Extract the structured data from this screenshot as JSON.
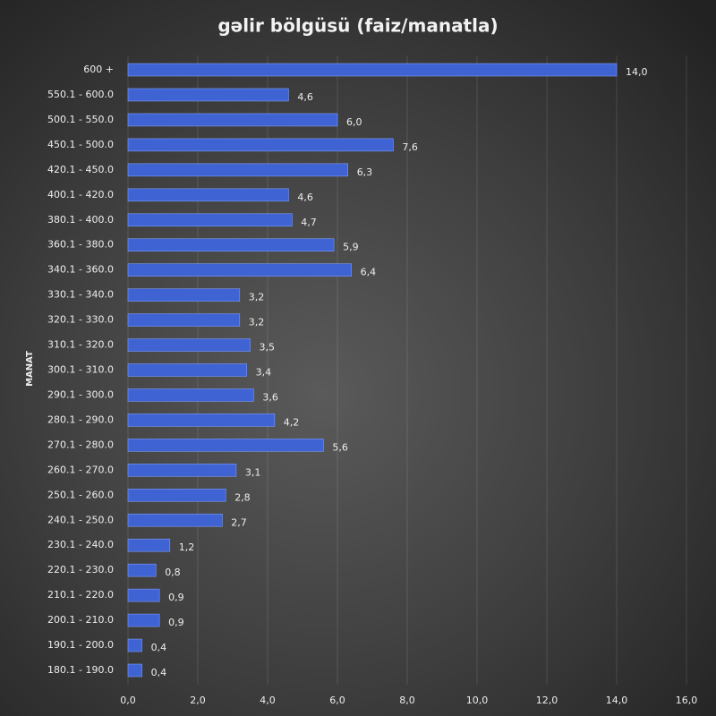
{
  "chart_data": {
    "type": "bar",
    "orientation": "horizontal",
    "title": "gəlir bölgüsü (faiz/manatla)",
    "y_axis_label": "MANAT",
    "categories": [
      "600 +",
      "550.1 - 600.0",
      "500.1 - 550.0",
      "450.1 - 500.0",
      "420.1 - 450.0",
      "400.1 - 420.0",
      "380.1 - 400.0",
      "360.1 - 380.0",
      "340.1 - 360.0",
      "330.1 - 340.0",
      "320.1 - 330.0",
      "310.1 - 320.0",
      "300.1 - 310.0",
      "290.1 - 300.0",
      "280.1 - 290.0",
      "270.1 - 280.0",
      "260.1 - 270.0",
      "250.1 - 260.0",
      "240.1 - 250.0",
      "230.1 - 240.0",
      "220.1 - 230.0",
      "210.1 - 220.0",
      "200.1 - 210.0",
      "190.1 - 200.0",
      "180.1 - 190.0"
    ],
    "values": [
      14.0,
      4.6,
      6.0,
      7.6,
      6.3,
      4.6,
      4.7,
      5.9,
      6.4,
      3.2,
      3.2,
      3.5,
      3.4,
      3.6,
      4.2,
      5.6,
      3.1,
      2.8,
      2.7,
      1.2,
      0.8,
      0.9,
      0.9,
      0.4,
      0.4
    ],
    "value_labels": [
      "14,0",
      "4,6",
      "6,0",
      "7,6",
      "6,3",
      "4,6",
      "4,7",
      "5,9",
      "6,4",
      "3,2",
      "3,2",
      "3,5",
      "3,4",
      "3,6",
      "4,2",
      "5,6",
      "3,1",
      "2,8",
      "2,7",
      "1,2",
      "0,8",
      "0,9",
      "0,9",
      "0,4",
      "0,4"
    ],
    "color": "#3f63d3",
    "xlim": [
      0,
      16
    ],
    "xticks": [
      {
        "value": 0,
        "label": "0,0"
      },
      {
        "value": 2,
        "label": "2,0"
      },
      {
        "value": 4,
        "label": "4,0"
      },
      {
        "value": 6,
        "label": "6,0"
      },
      {
        "value": 8,
        "label": "8,0"
      },
      {
        "value": 10,
        "label": "10,0"
      },
      {
        "value": 12,
        "label": "12,0"
      },
      {
        "value": 14,
        "label": "14,0"
      },
      {
        "value": 16,
        "label": "16,0"
      }
    ],
    "grid": true
  }
}
